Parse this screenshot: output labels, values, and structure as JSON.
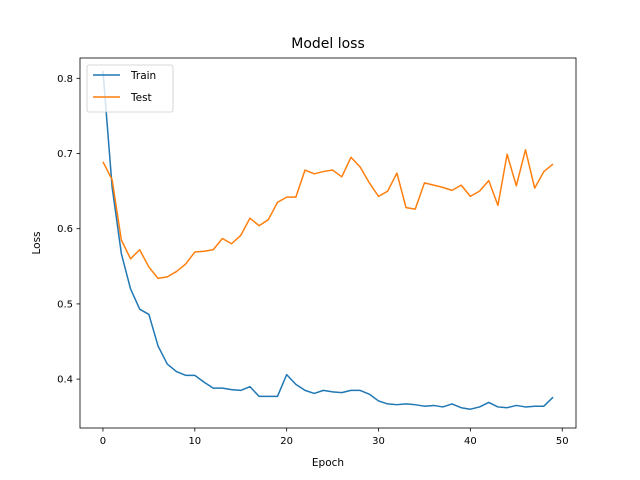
{
  "chart_data": {
    "type": "line",
    "title": "Model loss",
    "xlabel": "Epoch",
    "ylabel": "Loss",
    "xlim": [
      -2.5,
      51.5
    ],
    "ylim": [
      0.335,
      0.827
    ],
    "xticks": [
      0,
      10,
      20,
      30,
      40,
      50
    ],
    "yticks": [
      0.4,
      0.5,
      0.6,
      0.7,
      0.8
    ],
    "xtick_labels": [
      "0",
      "10",
      "20",
      "30",
      "40",
      "50"
    ],
    "ytick_labels": [
      "0.4",
      "0.5",
      "0.6",
      "0.7",
      "0.8"
    ],
    "grid": false,
    "legend_position": "top-left",
    "x": [
      0,
      1,
      2,
      3,
      4,
      5,
      6,
      7,
      8,
      9,
      10,
      11,
      12,
      13,
      14,
      15,
      16,
      17,
      18,
      19,
      20,
      21,
      22,
      23,
      24,
      25,
      26,
      27,
      28,
      29,
      30,
      31,
      32,
      33,
      34,
      35,
      36,
      37,
      38,
      39,
      40,
      41,
      42,
      43,
      44,
      45,
      46,
      47,
      48,
      49
    ],
    "series": [
      {
        "name": "Train",
        "color": "#1f77b4",
        "values": [
          0.81,
          0.655,
          0.567,
          0.52,
          0.493,
          0.486,
          0.444,
          0.42,
          0.41,
          0.405,
          0.405,
          0.396,
          0.388,
          0.388,
          0.386,
          0.385,
          0.39,
          0.377,
          0.377,
          0.377,
          0.406,
          0.393,
          0.385,
          0.381,
          0.385,
          0.383,
          0.382,
          0.385,
          0.385,
          0.38,
          0.371,
          0.367,
          0.366,
          0.367,
          0.366,
          0.364,
          0.365,
          0.363,
          0.367,
          0.362,
          0.36,
          0.363,
          0.369,
          0.363,
          0.362,
          0.365,
          0.363,
          0.364,
          0.364,
          0.376
        ]
      },
      {
        "name": "Test",
        "color": "#ff7f0e",
        "values": [
          0.689,
          0.665,
          0.585,
          0.56,
          0.572,
          0.549,
          0.534,
          0.536,
          0.543,
          0.553,
          0.569,
          0.57,
          0.572,
          0.587,
          0.58,
          0.591,
          0.614,
          0.604,
          0.612,
          0.635,
          0.642,
          0.642,
          0.678,
          0.673,
          0.676,
          0.678,
          0.669,
          0.695,
          0.682,
          0.661,
          0.643,
          0.65,
          0.674,
          0.628,
          0.626,
          0.661,
          0.658,
          0.655,
          0.651,
          0.658,
          0.643,
          0.65,
          0.664,
          0.631,
          0.699,
          0.657,
          0.705,
          0.654,
          0.676,
          0.686
        ]
      }
    ]
  }
}
